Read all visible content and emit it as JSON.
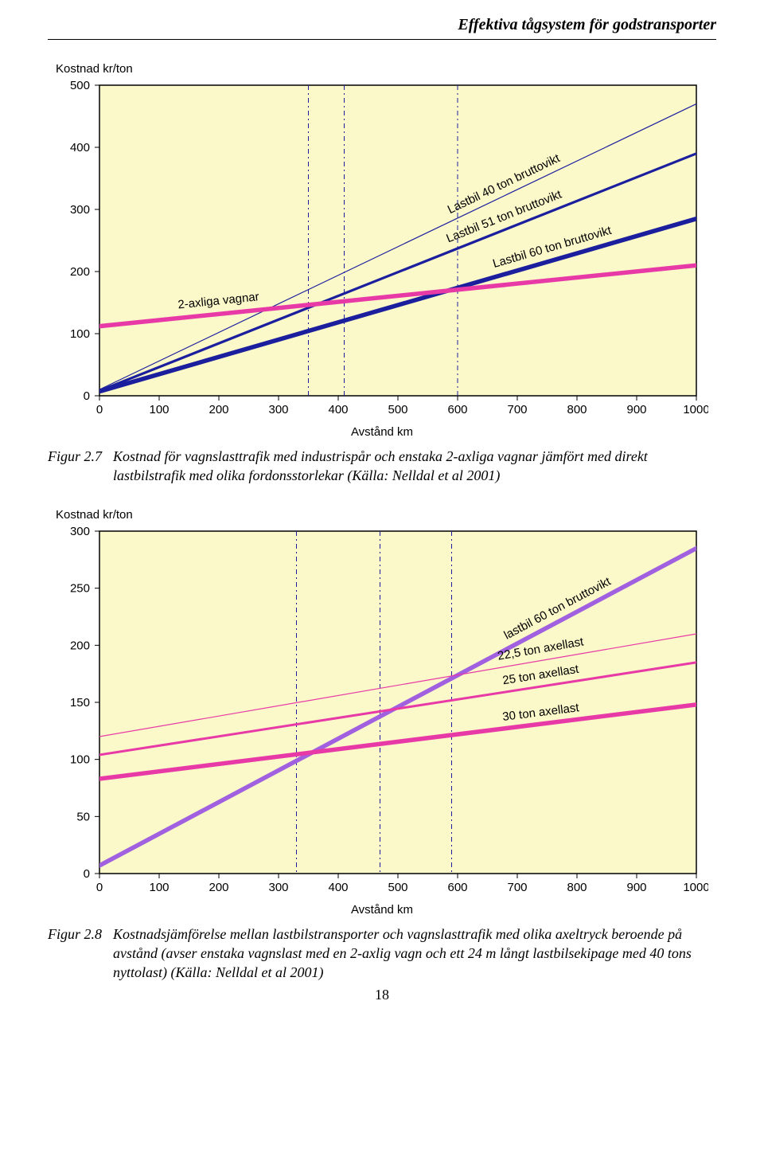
{
  "header": {
    "running_title": "Effektiva tågsystem för godstransporter"
  },
  "chart1": {
    "type": "line",
    "y_title": "Kostnad kr/ton",
    "x_title": "Avstånd km",
    "background_color": "#fbf8c9",
    "panel_border_color": "#000000",
    "xlim": [
      0,
      1000
    ],
    "xtick_step": 100,
    "ylim": [
      0,
      500
    ],
    "ytick_step": 100,
    "vlines": {
      "x": [
        350,
        410,
        600
      ],
      "color": "#1b1f9e",
      "dash": "6 4 2 4",
      "width": 1
    },
    "series": [
      {
        "name": "Lastbil 40 ton bruttovikt",
        "color": "#1b1f9e",
        "width": 1.2,
        "points": [
          [
            0,
            10
          ],
          [
            1000,
            470
          ]
        ]
      },
      {
        "name": "Lastbil 51 ton bruttovikt",
        "color": "#1b1f9e",
        "width": 3.2,
        "points": [
          [
            0,
            8
          ],
          [
            1000,
            390
          ]
        ]
      },
      {
        "name": "Lastbil 60 ton bruttovikt",
        "color": "#1b1f9e",
        "width": 5.5,
        "points": [
          [
            0,
            7
          ],
          [
            1000,
            285
          ]
        ]
      },
      {
        "name": "2-axliga vagnar",
        "color": "#e83aa7",
        "width": 5.5,
        "points": [
          [
            0,
            112
          ],
          [
            1000,
            210
          ]
        ]
      }
    ]
  },
  "caption1": {
    "label": "Figur 2.7",
    "text": "Kostnad för vagnslasttrafik med industrispår och enstaka 2-axliga vagnar jämfört med direkt lastbilstrafik med olika fordonsstorlekar (Källa: Nelldal et al 2001)"
  },
  "chart2": {
    "type": "line",
    "y_title": "Kostnad kr/ton",
    "x_title": "Avstånd km",
    "background_color": "#fbf8c9",
    "panel_border_color": "#000000",
    "xlim": [
      0,
      1000
    ],
    "xtick_step": 100,
    "ylim": [
      0,
      300
    ],
    "ytick_step": 50,
    "vlines": {
      "x": [
        330,
        470,
        590
      ],
      "color": "#1b1f9e",
      "dash": "6 4 2 4",
      "width": 1
    },
    "series": [
      {
        "name": "lastbil 60 ton bruttovikt",
        "color": "#a060e0",
        "width": 5.5,
        "points": [
          [
            0,
            7
          ],
          [
            1000,
            285
          ]
        ]
      },
      {
        "name": "22,5 ton axellast",
        "color": "#e83aa7",
        "width": 1.2,
        "points": [
          [
            0,
            120
          ],
          [
            1000,
            210
          ]
        ]
      },
      {
        "name": "25 ton axellast",
        "color": "#e83aa7",
        "width": 3.0,
        "points": [
          [
            0,
            104
          ],
          [
            1000,
            185
          ]
        ]
      },
      {
        "name": "30 ton axellast",
        "color": "#e83aa7",
        "width": 5.5,
        "points": [
          [
            0,
            83
          ],
          [
            1000,
            148
          ]
        ]
      }
    ]
  },
  "caption2": {
    "label": "Figur 2.8",
    "text": "Kostnadsjämförelse mellan lastbilstransporter och vagnslasttrafik med olika axeltryck beroende på avstånd (avser enstaka vagnslast med en 2-axlig vagn och ett 24 m långt lastbilsekipage med 40 tons nyttolast) (Källa: Nelldal et al 2001)"
  },
  "page_number": "18"
}
